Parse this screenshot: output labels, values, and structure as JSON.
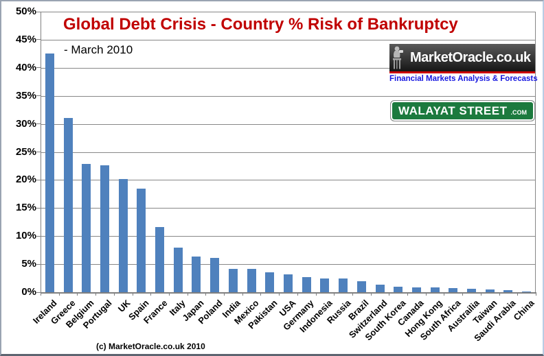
{
  "title": "Global Debt Crisis - Country % Risk of Bankruptcy",
  "subtitle": "- March 2010",
  "footer": "(c) MarketOracle.co.uk 2010",
  "branding": {
    "market_oracle_logo_text": "MarketOracle.co.uk",
    "market_oracle_tagline": "Financial Markets Analysis & Forecasts",
    "street_sign_text": "WALAYAT STREET",
    "street_sign_suffix": ".COM"
  },
  "colors": {
    "bar": "#4f81bd",
    "title_red": "#c00000",
    "gridline": "#878787",
    "logo_stripe_red": "#cc0000",
    "tagline_blue": "#1515e0",
    "street_sign_green": "#1c7a3e"
  },
  "chart_data": {
    "type": "bar",
    "title": "Global Debt Crisis - Country % Risk of Bankruptcy",
    "subtitle": "- March 2010",
    "xlabel": "",
    "ylabel": "",
    "ylim": [
      0,
      50
    ],
    "ytick_step": 5,
    "ytick_labels": [
      "0%",
      "5%",
      "10%",
      "15%",
      "20%",
      "25%",
      "30%",
      "35%",
      "40%",
      "45%",
      "50%"
    ],
    "grid": true,
    "legend": false,
    "bar_color": "#4f81bd",
    "categories": [
      "Ireland",
      "Greece",
      "Belgium",
      "Portugal",
      "UK",
      "Spain",
      "France",
      "Italy",
      "Japan",
      "Poland",
      "India",
      "Mexico",
      "Pakistan",
      "USA",
      "Germany",
      "Indonesia",
      "Russia",
      "Brazil",
      "Switzerland",
      "South Korea",
      "Canada",
      "Hong Kong",
      "South Africa",
      "Austrailia",
      "Taiwan",
      "Saudi Arabia",
      "China"
    ],
    "values": [
      42.5,
      31.0,
      22.9,
      22.6,
      20.2,
      18.4,
      11.6,
      8.0,
      6.4,
      6.1,
      4.2,
      4.1,
      3.5,
      3.2,
      2.7,
      2.5,
      2.4,
      2.0,
      1.4,
      0.95,
      0.9,
      0.8,
      0.7,
      0.6,
      0.55,
      0.4,
      0.15
    ]
  }
}
